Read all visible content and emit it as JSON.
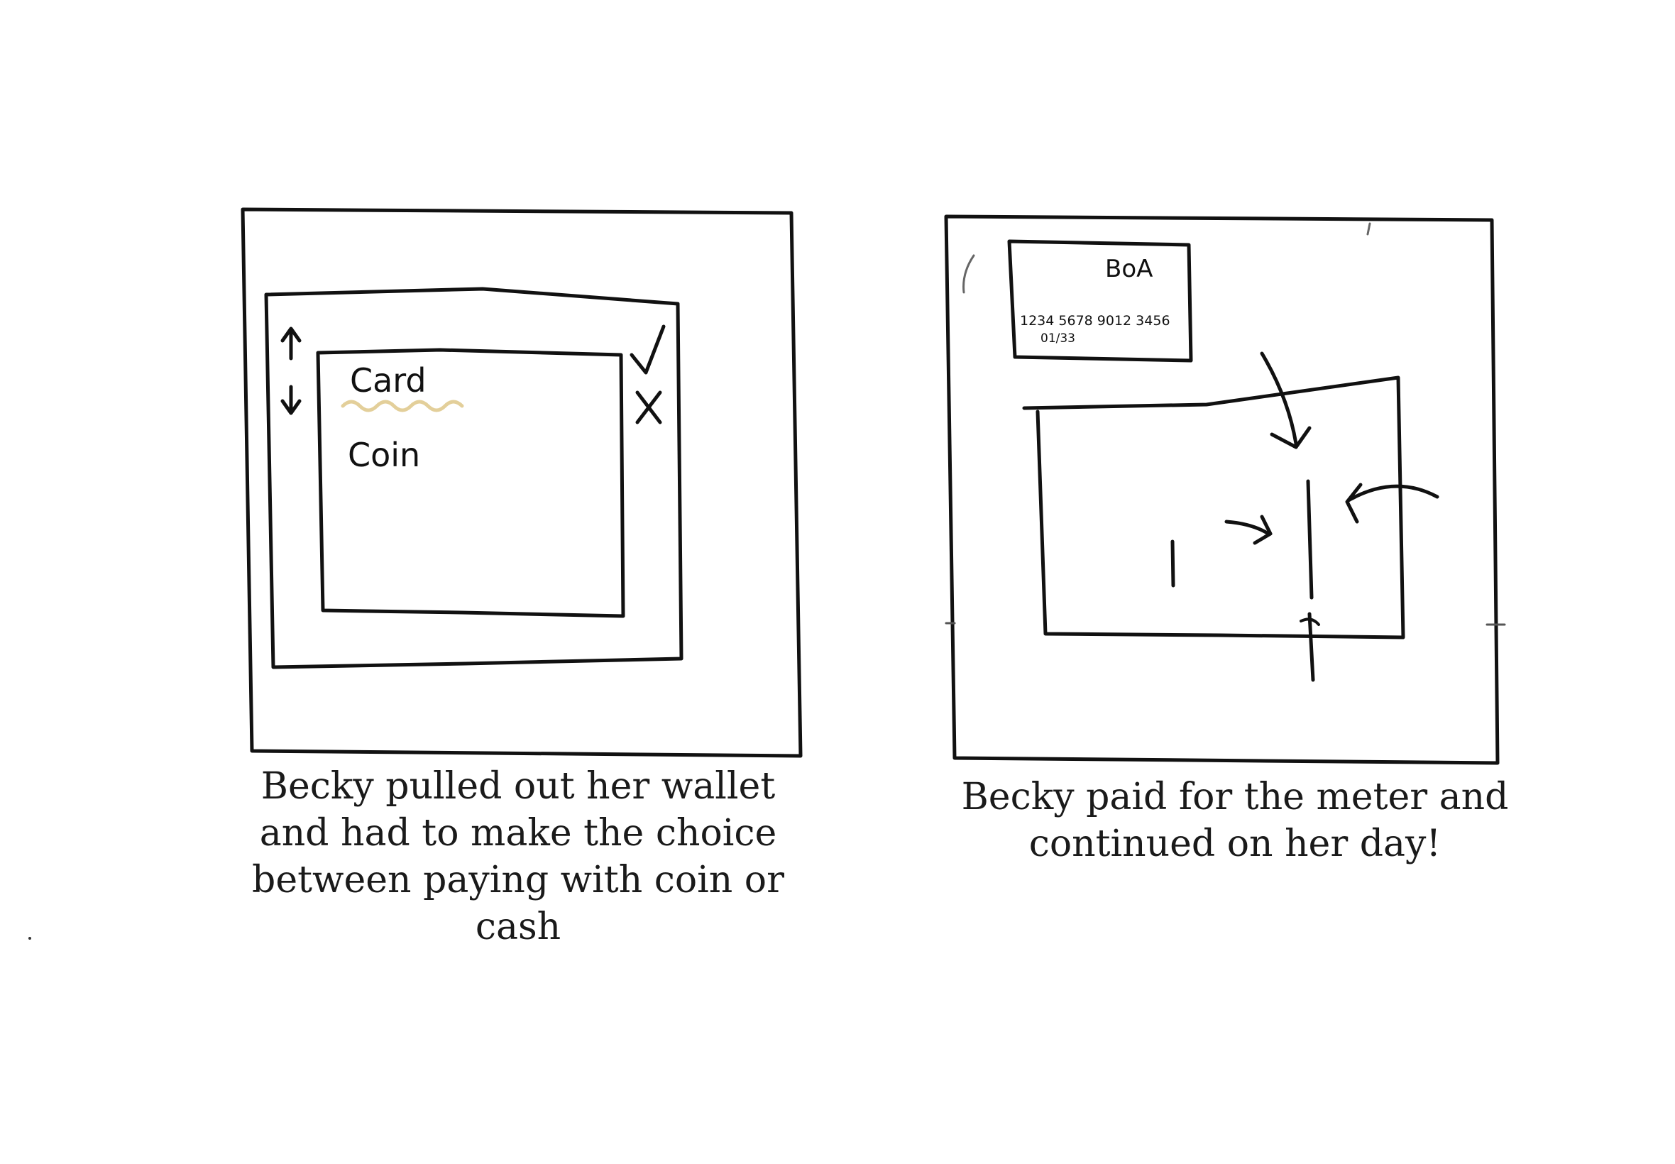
{
  "panels": [
    {
      "screen": {
        "options": [
          "Card",
          "Coin"
        ],
        "selected_option": "Card",
        "highlight_color": "#e3cf9a"
      },
      "caption": "Becky pulled out her wallet and had to make the choice between paying with coin or cash"
    },
    {
      "card": {
        "brand": "BoA",
        "number": "1234 5678 9012 3456",
        "expiry": "01/33"
      },
      "caption": "Becky paid for the meter and continued on her day!"
    }
  ],
  "colors": {
    "ink": "#111111",
    "background": "#ffffff",
    "highlight": "#e3cf9a"
  },
  "icons": [
    "arrow-up-icon",
    "arrow-down-icon",
    "checkmark-icon",
    "x-mark-icon",
    "arrow-icon"
  ]
}
